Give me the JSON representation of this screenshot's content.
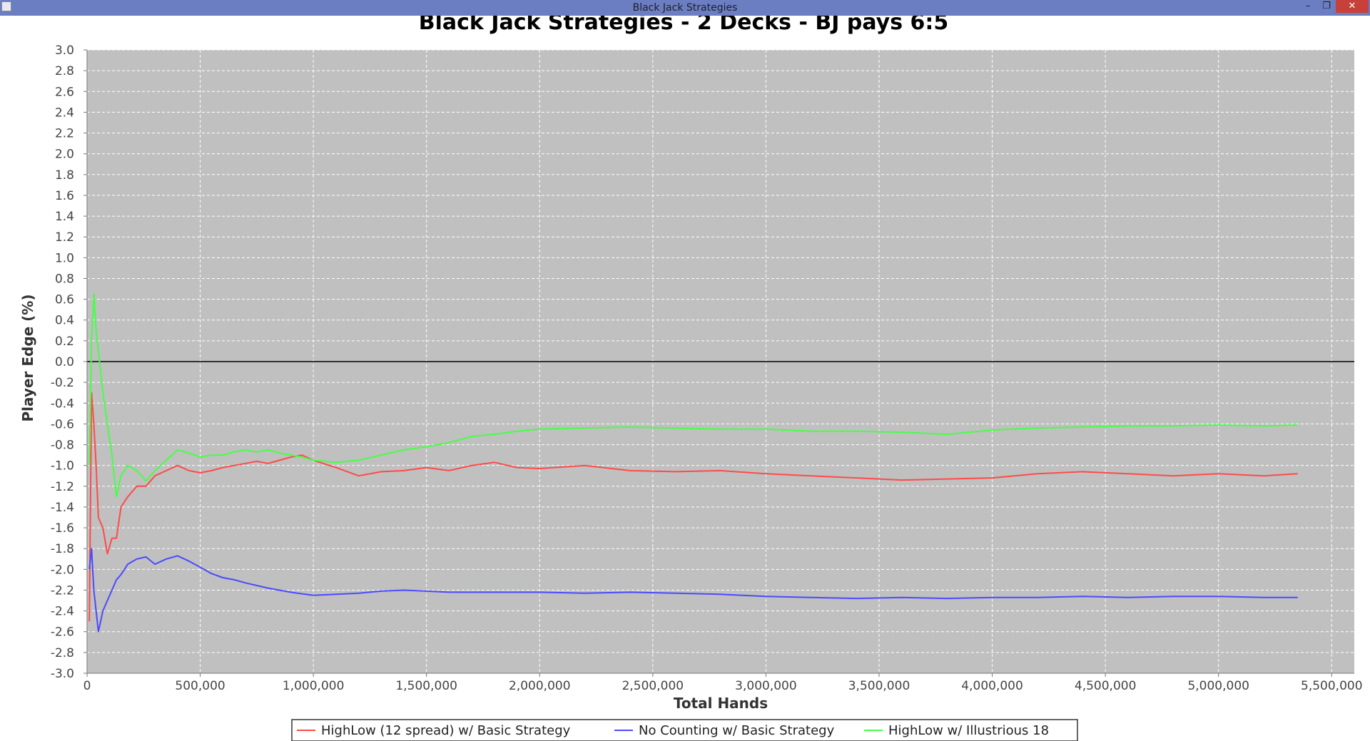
{
  "window": {
    "title": "Black Jack Strategies",
    "min_icon": "minimize-icon",
    "restore_icon": "restore-icon",
    "close_icon": "close-icon"
  },
  "chart_data": {
    "type": "line",
    "title": "Black Jack Strategies - 2 Decks - BJ pays 6:5",
    "xlabel": "Total Hands",
    "ylabel": "Player Edge (%)",
    "xlim": [
      0,
      5600000
    ],
    "ylim": [
      -3.0,
      3.0
    ],
    "xticks": [
      0,
      500000,
      1000000,
      1500000,
      2000000,
      2500000,
      3000000,
      3500000,
      4000000,
      4500000,
      5000000,
      5500000
    ],
    "xtick_labels": [
      "0",
      "500,000",
      "1,000,000",
      "1,500,000",
      "2,000,000",
      "2,500,000",
      "3,000,000",
      "3,500,000",
      "4,000,000",
      "4,500,000",
      "5,000,000",
      "5,500,000"
    ],
    "yticks": [
      3.0,
      2.8,
      2.6,
      2.4,
      2.2,
      2.0,
      1.8,
      1.6,
      1.4,
      1.2,
      1.0,
      0.8,
      0.6,
      0.4,
      0.2,
      0.0,
      -0.2,
      -0.4,
      -0.6,
      -0.8,
      -1.0,
      -1.2,
      -1.4,
      -1.6,
      -1.8,
      -2.0,
      -2.2,
      -2.4,
      -2.6,
      -2.8,
      -3.0
    ],
    "ytick_labels": [
      "3.0",
      "2.8",
      "2.6",
      "2.4",
      "2.2",
      "2.0",
      "1.8",
      "1.6",
      "1.4",
      "1.2",
      "1.0",
      "0.8",
      "0.6",
      "0.4",
      "0.2",
      "0.0",
      "-0.2",
      "-0.4",
      "-0.6",
      "-0.8",
      "-1.0",
      "-1.2",
      "-1.4",
      "-1.6",
      "-1.8",
      "-2.0",
      "-2.2",
      "-2.4",
      "-2.6",
      "-2.8",
      "-3.0"
    ],
    "grid": true,
    "zero_line": true,
    "legend_position": "bottom",
    "background_color": "#c0c0c0",
    "series": [
      {
        "name": "HighLow (12 spread) w/ Basic Strategy",
        "color": "#ff4a4a",
        "x": [
          10000,
          20000,
          30000,
          40000,
          50000,
          70000,
          90000,
          110000,
          130000,
          150000,
          180000,
          220000,
          260000,
          300000,
          350000,
          400000,
          450000,
          500000,
          550000,
          600000,
          650000,
          700000,
          750000,
          800000,
          850000,
          900000,
          950000,
          1000000,
          1100000,
          1200000,
          1300000,
          1400000,
          1500000,
          1600000,
          1700000,
          1800000,
          1900000,
          2000000,
          2200000,
          2400000,
          2600000,
          2800000,
          3000000,
          3200000,
          3400000,
          3600000,
          3800000,
          4000000,
          4200000,
          4400000,
          4600000,
          4800000,
          5000000,
          5200000,
          5350000
        ],
        "y": [
          -2.5,
          -0.3,
          -0.6,
          -1.0,
          -1.5,
          -1.6,
          -1.85,
          -1.7,
          -1.7,
          -1.4,
          -1.3,
          -1.2,
          -1.2,
          -1.1,
          -1.05,
          -1.0,
          -1.05,
          -1.07,
          -1.05,
          -1.02,
          -1.0,
          -0.98,
          -0.96,
          -0.98,
          -0.95,
          -0.92,
          -0.9,
          -0.95,
          -1.02,
          -1.1,
          -1.06,
          -1.05,
          -1.02,
          -1.05,
          -1.0,
          -0.97,
          -1.02,
          -1.03,
          -1.0,
          -1.05,
          -1.06,
          -1.05,
          -1.08,
          -1.1,
          -1.12,
          -1.14,
          -1.13,
          -1.12,
          -1.08,
          -1.06,
          -1.08,
          -1.1,
          -1.08,
          -1.1,
          -1.08
        ]
      },
      {
        "name": "No Counting w/ Basic Strategy",
        "color": "#4a4aff",
        "x": [
          10000,
          20000,
          30000,
          40000,
          50000,
          70000,
          90000,
          110000,
          130000,
          150000,
          180000,
          220000,
          260000,
          300000,
          350000,
          400000,
          450000,
          500000,
          550000,
          600000,
          650000,
          700000,
          800000,
          900000,
          1000000,
          1100000,
          1200000,
          1300000,
          1400000,
          1500000,
          1600000,
          1700000,
          1800000,
          2000000,
          2200000,
          2400000,
          2600000,
          2800000,
          3000000,
          3200000,
          3400000,
          3600000,
          3800000,
          4000000,
          4200000,
          4400000,
          4600000,
          4800000,
          5000000,
          5200000,
          5350000
        ],
        "y": [
          -2.0,
          -1.8,
          -2.2,
          -2.4,
          -2.6,
          -2.4,
          -2.3,
          -2.2,
          -2.1,
          -2.05,
          -1.95,
          -1.9,
          -1.88,
          -1.95,
          -1.9,
          -1.87,
          -1.92,
          -1.98,
          -2.04,
          -2.08,
          -2.1,
          -2.13,
          -2.18,
          -2.22,
          -2.25,
          -2.24,
          -2.23,
          -2.21,
          -2.2,
          -2.21,
          -2.22,
          -2.22,
          -2.22,
          -2.22,
          -2.23,
          -2.22,
          -2.23,
          -2.24,
          -2.26,
          -2.27,
          -2.28,
          -2.27,
          -2.28,
          -2.27,
          -2.27,
          -2.26,
          -2.27,
          -2.26,
          -2.26,
          -2.27,
          -2.27
        ]
      },
      {
        "name": "HighLow w/ Illustrious 18",
        "color": "#46ff46",
        "x": [
          10000,
          20000,
          30000,
          40000,
          50000,
          70000,
          90000,
          110000,
          130000,
          150000,
          180000,
          220000,
          260000,
          300000,
          350000,
          400000,
          450000,
          500000,
          550000,
          600000,
          650000,
          700000,
          750000,
          800000,
          850000,
          900000,
          950000,
          1000000,
          1100000,
          1200000,
          1300000,
          1400000,
          1500000,
          1600000,
          1700000,
          1800000,
          1900000,
          2000000,
          2200000,
          2400000,
          2600000,
          2800000,
          3000000,
          3200000,
          3400000,
          3600000,
          3800000,
          4000000,
          4200000,
          4400000,
          4600000,
          4800000,
          5000000,
          5200000,
          5350000
        ],
        "y": [
          -1.0,
          0.2,
          0.65,
          0.3,
          0.1,
          -0.3,
          -0.6,
          -0.9,
          -1.3,
          -1.1,
          -1.0,
          -1.05,
          -1.15,
          -1.05,
          -0.95,
          -0.85,
          -0.88,
          -0.92,
          -0.9,
          -0.9,
          -0.87,
          -0.85,
          -0.87,
          -0.85,
          -0.88,
          -0.9,
          -0.92,
          -0.95,
          -0.97,
          -0.95,
          -0.9,
          -0.85,
          -0.82,
          -0.78,
          -0.72,
          -0.7,
          -0.67,
          -0.65,
          -0.64,
          -0.63,
          -0.64,
          -0.65,
          -0.65,
          -0.67,
          -0.67,
          -0.68,
          -0.7,
          -0.66,
          -0.64,
          -0.63,
          -0.62,
          -0.62,
          -0.61,
          -0.62,
          -0.61
        ]
      }
    ]
  }
}
